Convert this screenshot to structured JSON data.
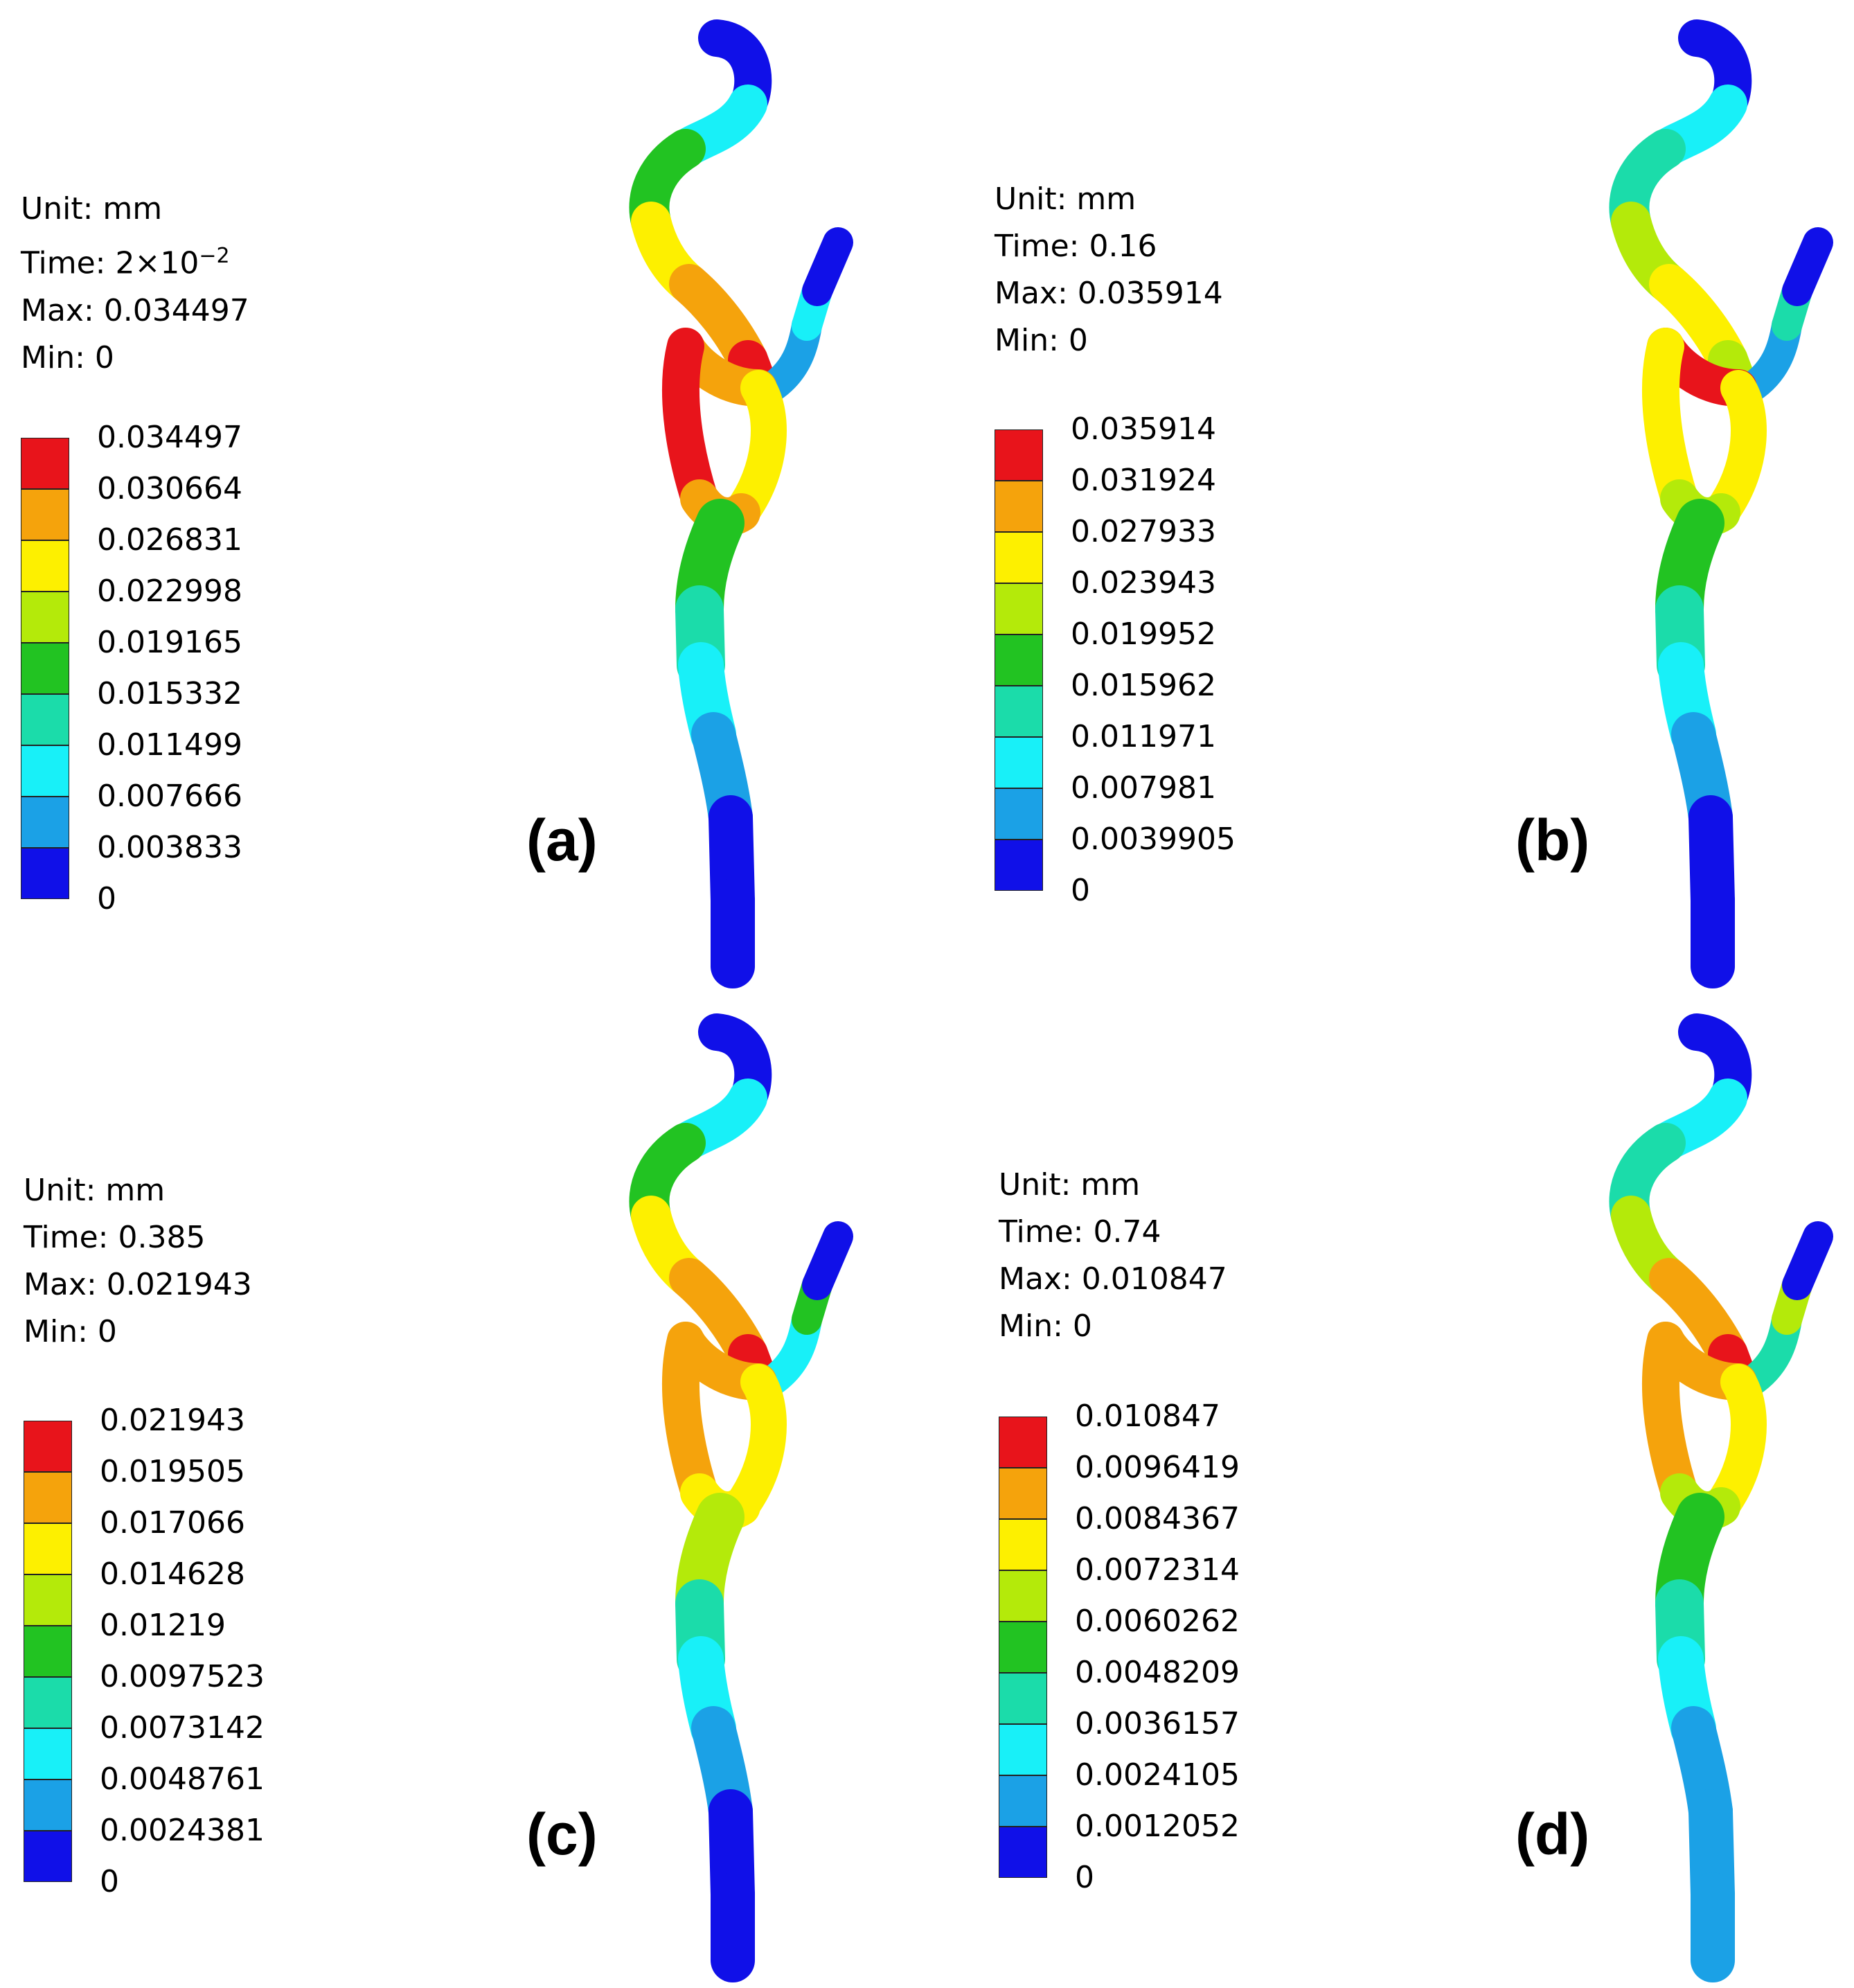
{
  "panels": [
    {
      "id": "a",
      "label": "(a)",
      "unit": "Unit: mm",
      "time_prefix": "Time: ",
      "time_base": "2×10",
      "time_exp": "−2",
      "max": "Max: 0.034497",
      "min": "Min: 0",
      "ticks": [
        "0.034497",
        "0.030664",
        "0.026831",
        "0.022998",
        "0.019165",
        "0.015332",
        "0.011499",
        "0.007666",
        "0.003833",
        "0"
      ]
    },
    {
      "id": "b",
      "label": "(b)",
      "unit": "Unit: mm",
      "time_text": "Time: 0.16",
      "max": "Max: 0.035914",
      "min": "Min: 0",
      "ticks": [
        "0.035914",
        "0.031924",
        "0.027933",
        "0.023943",
        "0.019952",
        "0.015962",
        "0.011971",
        "0.007981",
        "0.0039905",
        "0"
      ]
    },
    {
      "id": "c",
      "label": "(c)",
      "unit": "Unit: mm",
      "time_text": "Time: 0.385",
      "max": "Max: 0.021943",
      "min": "Min: 0",
      "ticks": [
        "0.021943",
        "0.019505",
        "0.017066",
        "0.014628",
        "0.01219",
        "0.0097523",
        "0.0073142",
        "0.0048761",
        "0.0024381",
        "0"
      ]
    },
    {
      "id": "d",
      "label": "(d)",
      "unit": "Unit: mm",
      "time_text": "Time: 0.74",
      "max": "Max: 0.010847",
      "min": "Min: 0",
      "ticks": [
        "0.010847",
        "0.0096419",
        "0.0084367",
        "0.0072314",
        "0.0060262",
        "0.0048209",
        "0.0036157",
        "0.0024105",
        "0.0012052",
        "0"
      ]
    }
  ],
  "colormap": [
    "#e8141b",
    "#f5a30c",
    "#fdf000",
    "#b4ea0a",
    "#22c322",
    "#1bdcaa",
    "#18f0f8",
    "#1ba1e6",
    "#1010e8"
  ]
}
